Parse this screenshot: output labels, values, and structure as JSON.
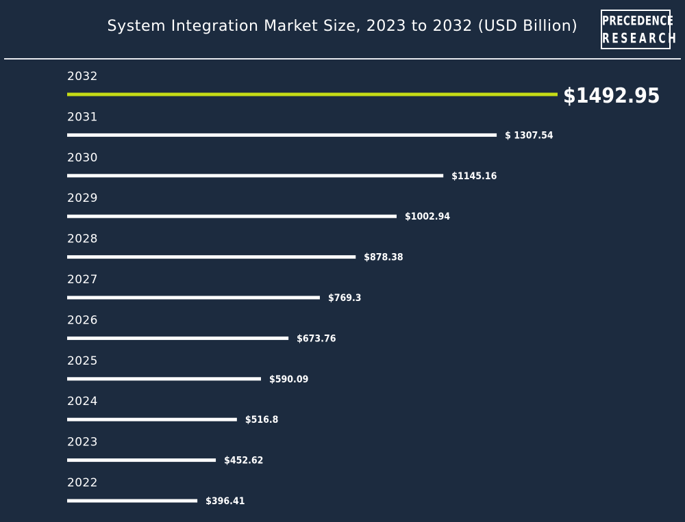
{
  "header": {
    "title": "System Integration Market Size, 2023 to 2032 (USD Billion)"
  },
  "logo": {
    "line1": "PRECEDENCE",
    "line2": "RESEARCH"
  },
  "colors": {
    "background": "#1c2b3f",
    "bar": "#ffffff",
    "highlight_bar": "#c5dc16",
    "text": "#ffffff"
  },
  "chart_data": {
    "type": "bar",
    "orientation": "horizontal",
    "title": "System Integration Market Size, 2023 to 2032 (USD Billion)",
    "categories": [
      "2032",
      "2031",
      "2030",
      "2029",
      "2028",
      "2027",
      "2026",
      "2025",
      "2024",
      "2023",
      "2022"
    ],
    "values": [
      1492.95,
      1307.54,
      1145.16,
      1002.94,
      878.38,
      769.3,
      673.76,
      590.09,
      516.8,
      452.62,
      396.41
    ],
    "value_labels": [
      "$1492.95",
      "$ 1307.54",
      "$1145.16",
      "$1002.94",
      "$878.38",
      "$769.3",
      "$673.76",
      "$590.09",
      "$516.8",
      "$452.62",
      "$396.41"
    ],
    "highlight_category": "2032",
    "xlim": [
      0,
      1492.95
    ],
    "grid": false,
    "legend": "none"
  }
}
